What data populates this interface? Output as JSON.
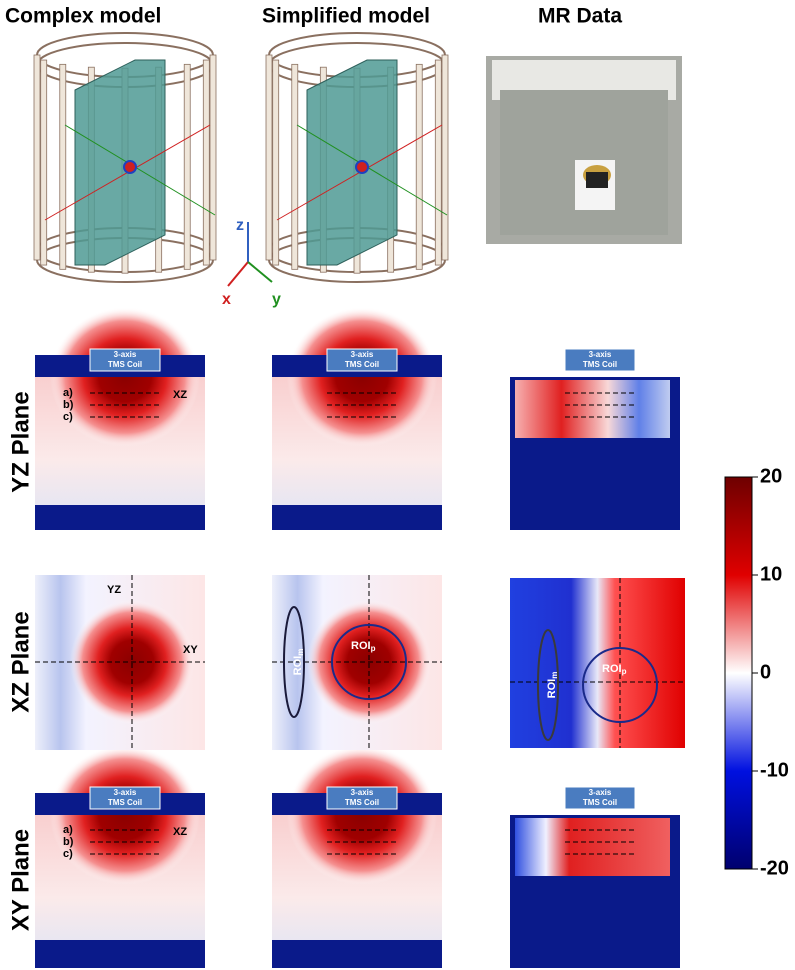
{
  "columns": [
    "Complex model",
    "Simplified model",
    "MR Data"
  ],
  "axis_labels": [
    "z",
    "x",
    "y"
  ],
  "rows": [
    "YZ Plane",
    "XZ Plane",
    "XY Plane"
  ],
  "coil_label": [
    "3-axis",
    "TMS Coil"
  ],
  "line_labels": [
    "a)",
    "b)",
    "c)"
  ],
  "plane_labels": {
    "xz": "XZ",
    "yz": "YZ",
    "xy": "XY"
  },
  "roi_labels": {
    "m": {
      "base": "ROI",
      "sub": "m"
    },
    "p": {
      "base": "ROI",
      "sub": "p"
    }
  },
  "colorbar": {
    "ticks": [
      20,
      10,
      0,
      -10,
      -20
    ]
  }
}
